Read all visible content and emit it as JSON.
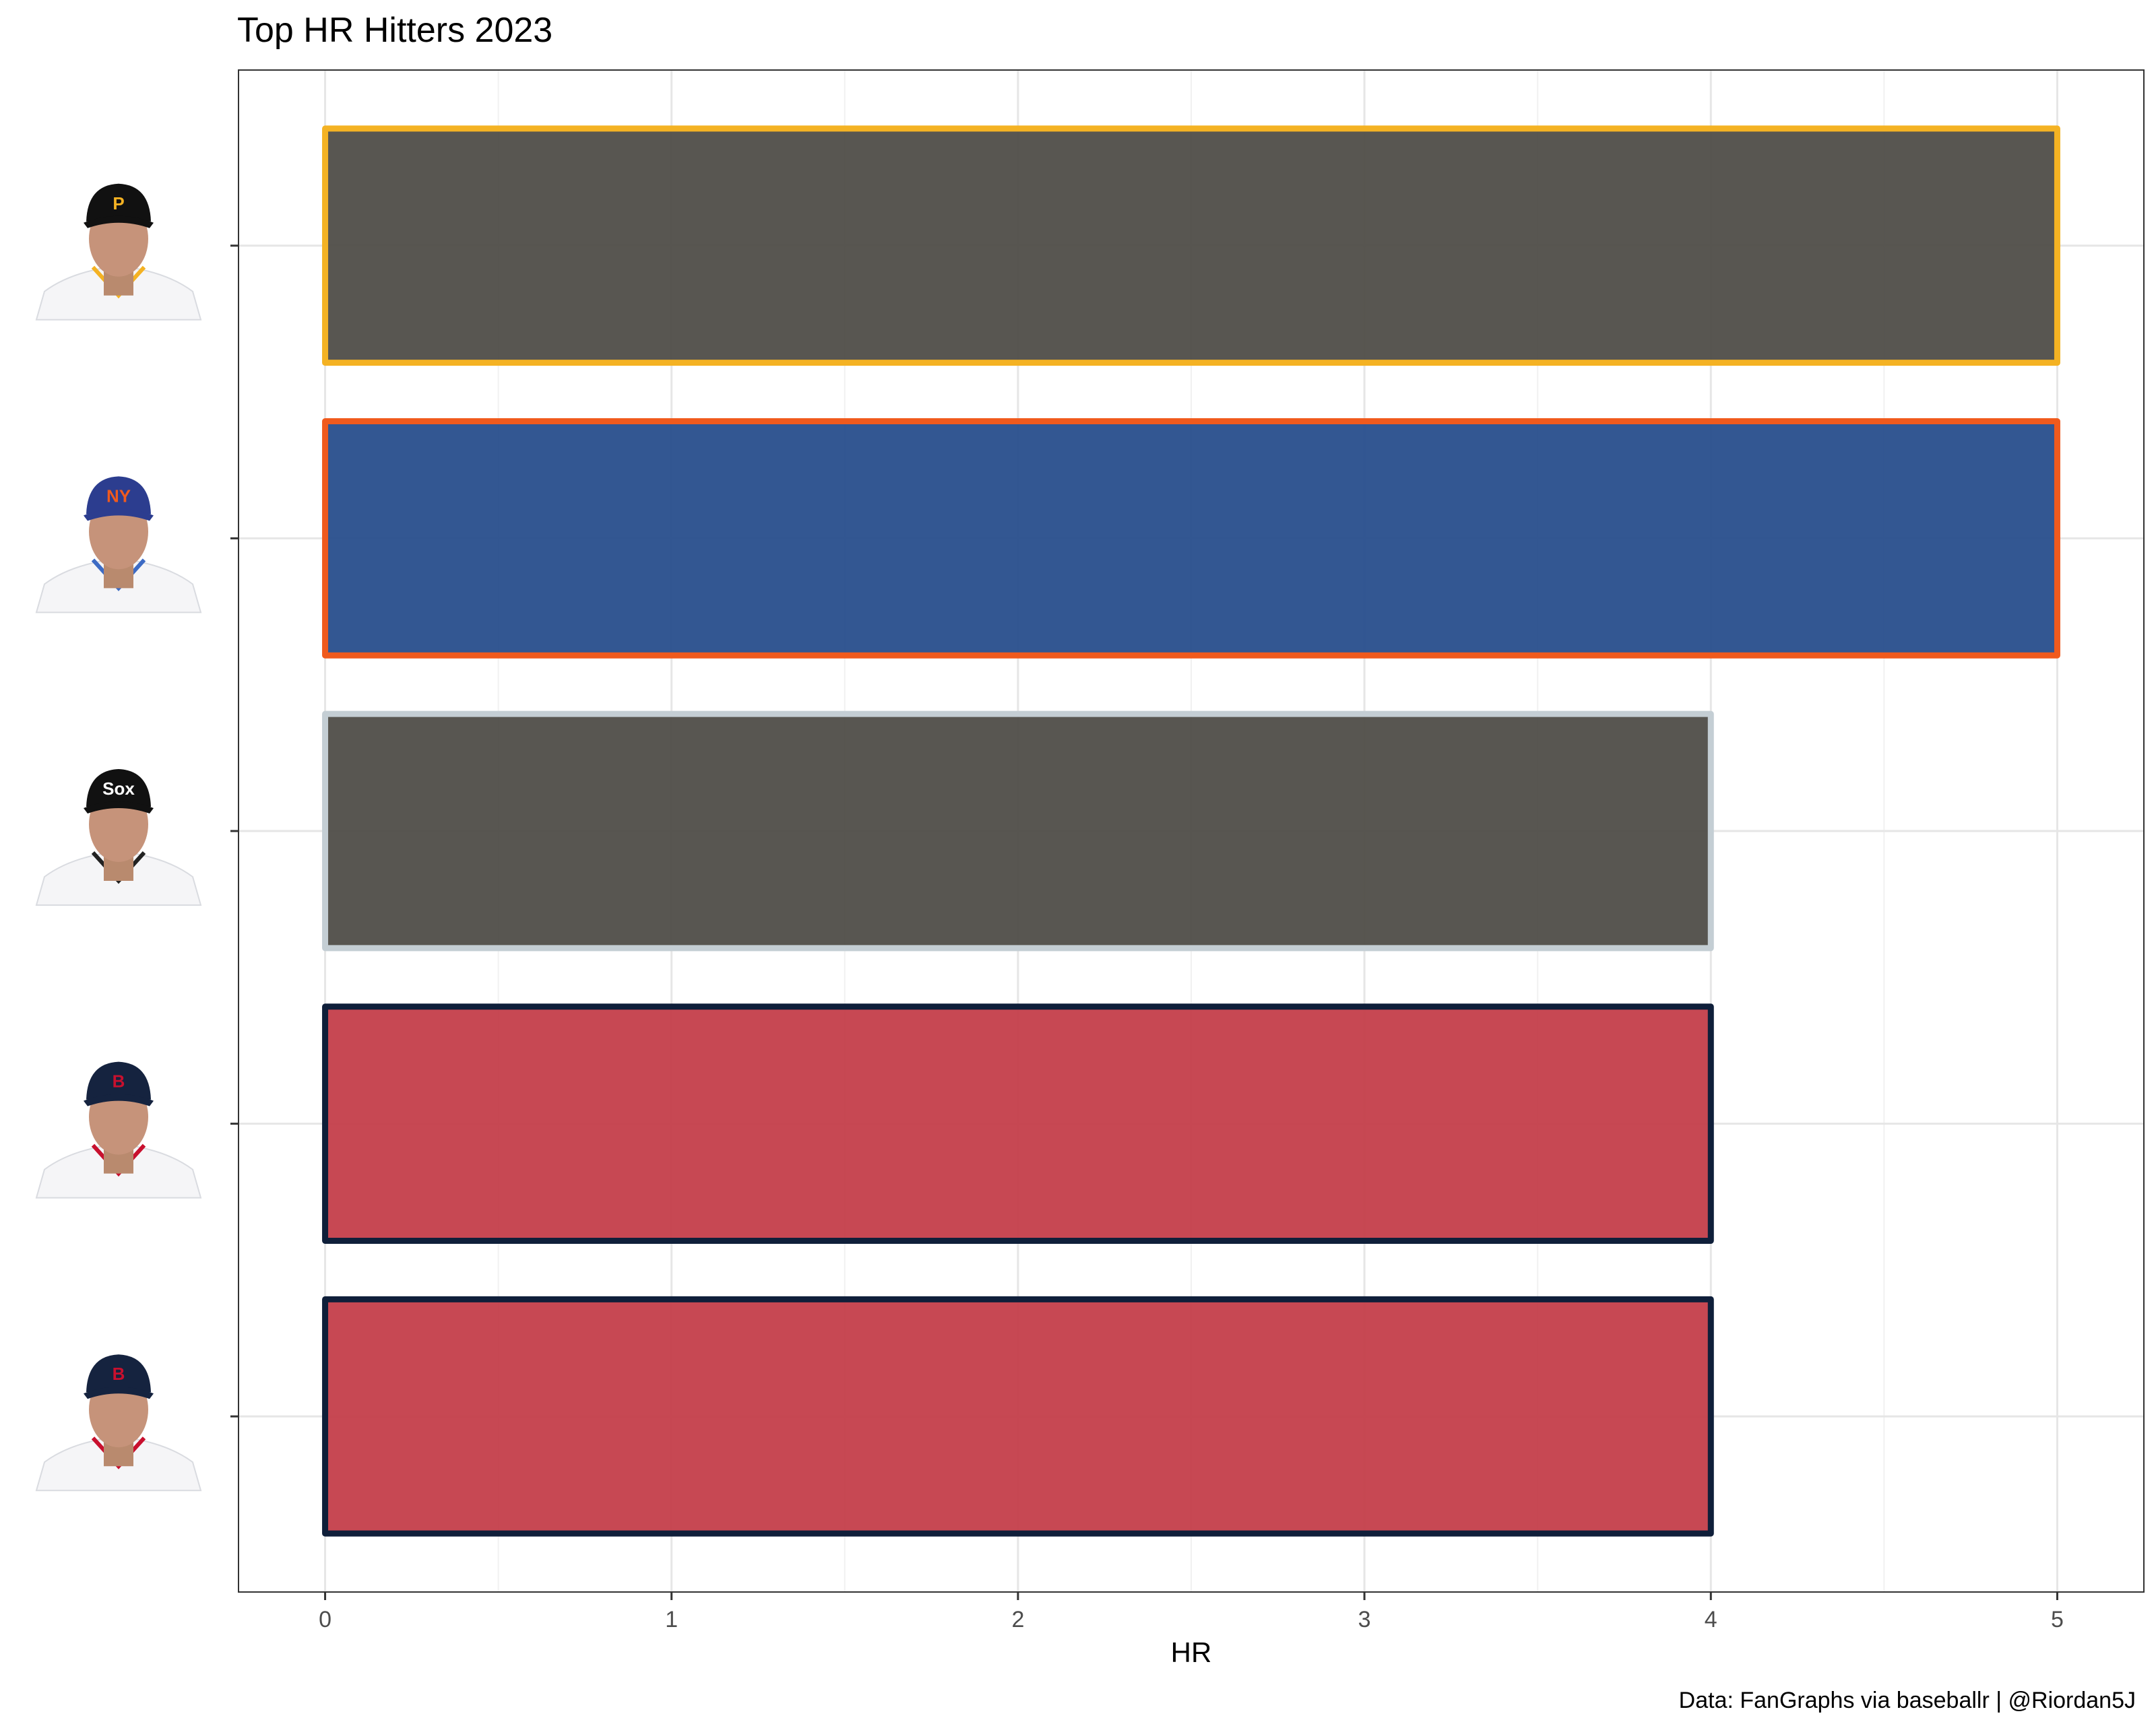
{
  "chart_data": {
    "type": "bar",
    "orientation": "horizontal",
    "title": "Top HR Hitters 2023",
    "xlabel": "HR",
    "ylabel": "",
    "caption": "Data: FanGraphs via baseballr | @Riordan5J",
    "xlim": [
      -0.25,
      5.25
    ],
    "x_ticks": [
      0,
      1,
      2,
      3,
      4,
      5
    ],
    "x_tick_labels": [
      "0",
      "1",
      "2",
      "3",
      "4",
      "5"
    ],
    "grid": true,
    "legend": "none",
    "bars": [
      {
        "team_cap": "P",
        "value": 5,
        "fill": "#4b4944",
        "outline": "#f4b223",
        "jersey_trim": "#f4b223",
        "cap_color": "#111111"
      },
      {
        "team_cap": "NY",
        "value": 5,
        "fill": "#244a8a",
        "outline": "#f05a1d",
        "jersey_trim": "#3d6bc4",
        "cap_color": "#2c3d8f"
      },
      {
        "team_cap": "Sox",
        "value": 4,
        "fill": "#4b4944",
        "outline": "#c4ced4",
        "jersey_trim": "#222222",
        "cap_color": "#111111"
      },
      {
        "team_cap": "B",
        "value": 4,
        "fill": "#c33a46",
        "outline": "#0f1f3a",
        "jersey_trim": "#c8102e",
        "cap_color": "#15233f"
      },
      {
        "team_cap": "B",
        "value": 4,
        "fill": "#c33a46",
        "outline": "#0f1f3a",
        "jersey_trim": "#c8102e",
        "cap_color": "#15233f"
      }
    ]
  }
}
